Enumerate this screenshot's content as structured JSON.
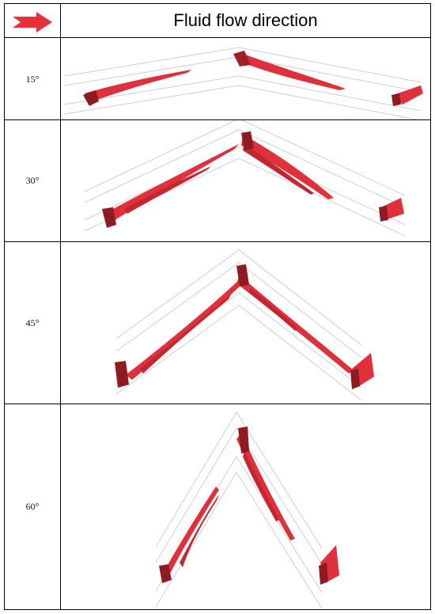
{
  "header": {
    "title": "Fluid flow direction",
    "arrow_icon": "right-arrow-icon",
    "arrow_color": "#e8303b"
  },
  "rows": [
    {
      "label": "15°"
    },
    {
      "label": "30°"
    },
    {
      "label": "45°"
    },
    {
      "label": "60°"
    }
  ],
  "colors": {
    "flow": "#e0303c",
    "flow_dark": "#8f1b22",
    "channel": "#c9c9c9"
  }
}
